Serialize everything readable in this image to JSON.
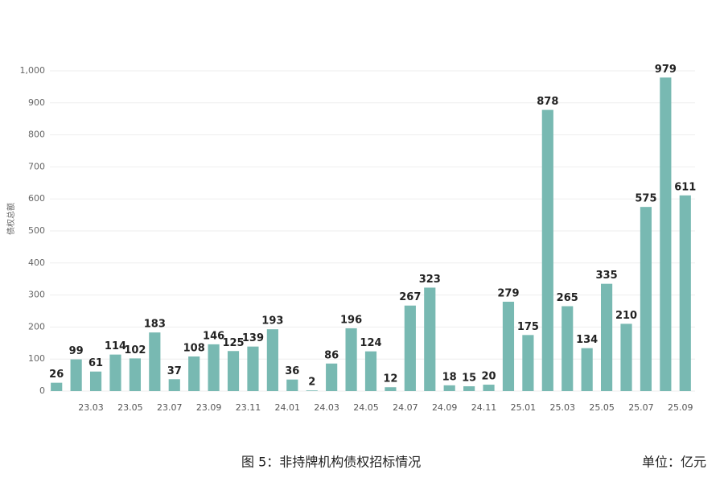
{
  "chart_data": {
    "type": "bar",
    "y_label": "债权总额",
    "caption": "图 5：非持牌机构债权招标情况",
    "unit": "单位：亿元",
    "categories": [
      null,
      null,
      "23.03",
      null,
      "23.05",
      null,
      "23.07",
      null,
      "23.09",
      null,
      "23.11",
      null,
      "24.01",
      null,
      "24.03",
      null,
      "24.05",
      null,
      "24.07",
      null,
      "24.09",
      null,
      "24.11",
      null,
      "25.01",
      null,
      "25.03",
      null,
      "25.05",
      null,
      "25.07",
      null,
      "25.09"
    ],
    "values": [
      26,
      99,
      61,
      114,
      102,
      183,
      37,
      108,
      146,
      125,
      139,
      193,
      36,
      2,
      86,
      196,
      124,
      12,
      267,
      323,
      18,
      15,
      20,
      279,
      175,
      878,
      265,
      134,
      335,
      210,
      575,
      979,
      611
    ],
    "color": "#78b9b2",
    "ylim": [
      0,
      1000
    ],
    "yticks": [
      0,
      100,
      200,
      300,
      400,
      500,
      600,
      700,
      800,
      900,
      {
        "value": 1000,
        "label": "1,000"
      }
    ],
    "grid": true
  }
}
